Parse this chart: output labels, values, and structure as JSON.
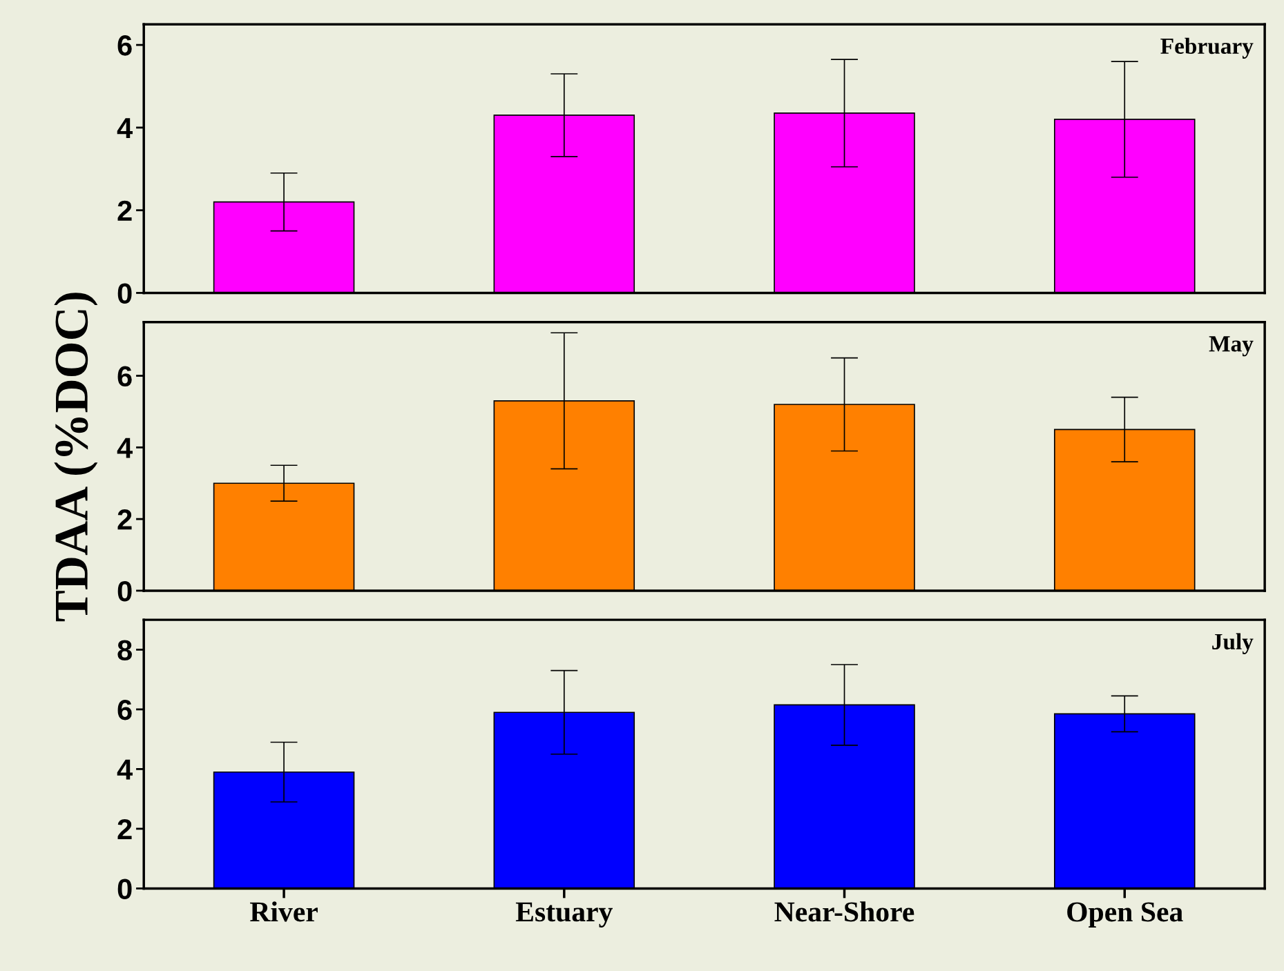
{
  "chart_data": [
    {
      "type": "bar",
      "title": "February",
      "categories": [
        null,
        null,
        null,
        null
      ],
      "tick_labels": "y",
      "series": [
        {
          "color": "#ff00ff",
          "values": [
            2.2,
            4.3,
            4.35,
            4.2
          ],
          "errors": [
            0.7,
            1.0,
            1.3,
            1.4
          ]
        }
      ],
      "ylim": [
        0,
        6.5
      ],
      "yticks": [
        0,
        2,
        4,
        6
      ],
      "grid": false,
      "legend": false
    },
    {
      "type": "bar",
      "title": "May",
      "ylabel": "TDAA (%DOC)",
      "categories": [
        null,
        null,
        null,
        null
      ],
      "tick_labels": "y",
      "series": [
        {
          "color": "#ff8000",
          "values": [
            3.0,
            5.3,
            5.2,
            4.5
          ],
          "errors": [
            0.5,
            1.9,
            1.3,
            0.9
          ]
        }
      ],
      "ylim": [
        0,
        7.5
      ],
      "yticks": [
        0,
        2,
        4,
        6
      ],
      "grid": false,
      "legend": false
    },
    {
      "type": "bar",
      "title": "July",
      "categories": [
        "River",
        "Estuary",
        "Near-Shore",
        "Open Sea"
      ],
      "series": [
        {
          "color": "#0000ff",
          "values": [
            3.9,
            5.9,
            6.15,
            5.85
          ],
          "errors": [
            1.0,
            1.4,
            1.35,
            0.6
          ]
        }
      ],
      "ylim": [
        0,
        9
      ],
      "yticks": [
        0,
        2,
        4,
        6,
        8
      ],
      "grid": false,
      "legend": false
    }
  ]
}
